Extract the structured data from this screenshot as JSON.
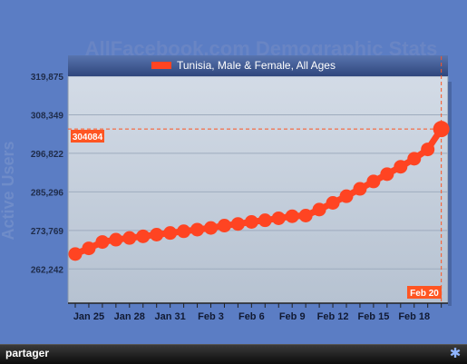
{
  "chart_data": {
    "type": "line",
    "title": "AllFacebook.com Demographic Stats",
    "ylabel": "Active Users",
    "xlabel": "",
    "legend": "top",
    "series": [
      {
        "name": "Tunisia, Male & Female, All Ages",
        "color": "#ff4422",
        "x": [
          "Jan 24",
          "Jan 25",
          "Jan 26",
          "Jan 27",
          "Jan 28",
          "Jan 29",
          "Jan 30",
          "Jan 31",
          "Feb 1",
          "Feb 2",
          "Feb 3",
          "Feb 4",
          "Feb 5",
          "Feb 6",
          "Feb 7",
          "Feb 8",
          "Feb 9",
          "Feb 10",
          "Feb 11",
          "Feb 12",
          "Feb 13",
          "Feb 14",
          "Feb 15",
          "Feb 16",
          "Feb 17",
          "Feb 18",
          "Feb 19",
          "Feb 20"
        ],
        "values": [
          266700,
          268400,
          270300,
          271000,
          271500,
          272000,
          272500,
          273000,
          273500,
          274000,
          274500,
          275200,
          275700,
          276300,
          276800,
          277400,
          278000,
          278200,
          280000,
          282000,
          284000,
          286200,
          288400,
          290600,
          292800,
          295200,
          298000,
          304084
        ]
      }
    ],
    "y_ticks": [
      262242,
      273769,
      285296,
      296822,
      308349,
      319875
    ],
    "y_tick_labels": [
      "262,242",
      "273,769",
      "285,296",
      "296,822",
      "308,349",
      "319,875"
    ],
    "x_tick_labels": [
      "Jan 25",
      "Jan 28",
      "Jan 31",
      "Feb 3",
      "Feb 6",
      "Feb 9",
      "Feb 12",
      "Feb 15",
      "Feb 18"
    ],
    "ylim": [
      252000,
      319875
    ],
    "grid": true,
    "crosshair": {
      "value_label": "304084",
      "date_label": "Feb 20"
    }
  },
  "footer": {
    "share_label": "partager",
    "share_icon": "gear-icon"
  }
}
